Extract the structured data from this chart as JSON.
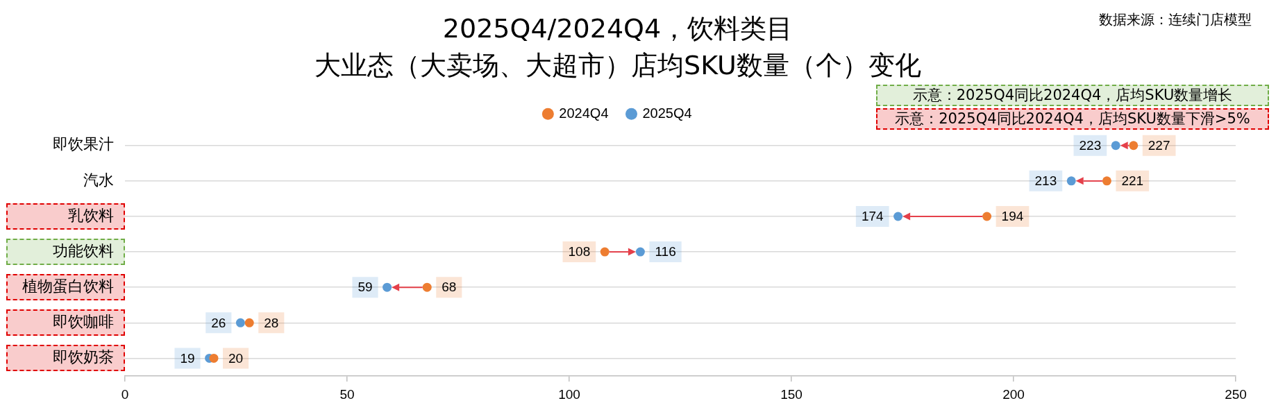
{
  "chart_data": {
    "type": "scatter",
    "orientation": "horizontal",
    "title": "2025Q4/2024Q4，饮料类目",
    "subtitle": "大业态（大卖场、大超市）店均SKU数量（个）变化",
    "categories": [
      "即饮果汁",
      "汽水",
      "乳饮料",
      "功能饮料",
      "植物蛋白饮料",
      "即饮咖啡",
      "即饮奶茶"
    ],
    "series": [
      {
        "name": "2024Q4",
        "color": "#ed7d31",
        "values": [
          227,
          221,
          194,
          108,
          68,
          28,
          20
        ]
      },
      {
        "name": "2025Q4",
        "color": "#5b9bd5",
        "values": [
          223,
          213,
          174,
          116,
          59,
          26,
          19
        ]
      }
    ],
    "xlim": [
      0,
      250
    ],
    "xticks": [
      0,
      50,
      100,
      150,
      200,
      250
    ],
    "grid": "y",
    "legend": "top",
    "marker": "circle",
    "data_labels": true,
    "annotations": [
      "数据来源：连续门店模型",
      "示意：2025Q4同比2024Q4，店均SKU数量增长",
      "示意：2025Q4同比2024Q4，店均SKU数量下滑>5%"
    ]
  }
}
